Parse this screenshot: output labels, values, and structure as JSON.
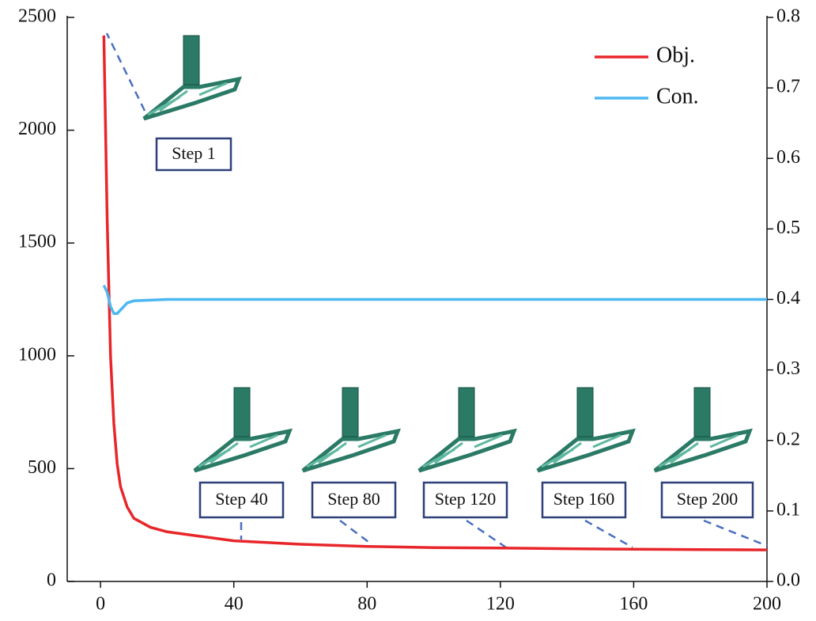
{
  "chart_data": {
    "type": "line",
    "x": [
      1,
      2,
      3,
      4,
      5,
      6,
      8,
      10,
      15,
      20,
      30,
      40,
      60,
      80,
      100,
      120,
      140,
      160,
      180,
      200
    ],
    "series": [
      {
        "name": "Obj.",
        "color": "#e8262a",
        "values": [
          2420,
          1600,
          1000,
          700,
          520,
          420,
          330,
          280,
          240,
          220,
          200,
          180,
          165,
          155,
          150,
          148,
          145,
          143,
          141,
          140
        ]
      },
      {
        "name": "Con.",
        "color": "#4cb8f2",
        "axis": "y2",
        "values": [
          0.42,
          0.41,
          0.39,
          0.38,
          0.38,
          0.385,
          0.395,
          0.398,
          0.399,
          0.4,
          0.4,
          0.4,
          0.4,
          0.4,
          0.4,
          0.4,
          0.4,
          0.4,
          0.4,
          0.4
        ]
      }
    ],
    "xlim": [
      -10,
      200
    ],
    "xticks": [
      0,
      40,
      80,
      120,
      160,
      200
    ],
    "ylim": [
      0,
      2500
    ],
    "yticks": [
      0,
      500,
      1000,
      1500,
      2000,
      2500
    ],
    "y2lim": [
      0,
      0.8
    ],
    "y2ticks": [
      {
        "value": 0,
        "label": "0.0"
      },
      0.1,
      0.2,
      0.3,
      0.4,
      0.5,
      0.6,
      0.7,
      0.8
    ],
    "legend": "upper right",
    "annotations": [
      "Step 1",
      "Step 40",
      "Step 80",
      "Step 120",
      "Step 160",
      "Step 200"
    ]
  }
}
